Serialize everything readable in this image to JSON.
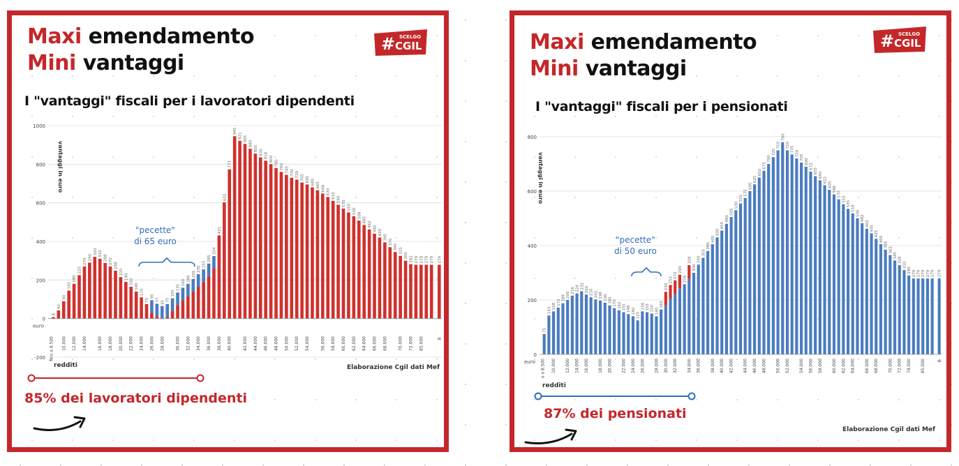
{
  "colors": {
    "accent_red": "#c4272a",
    "bar_red": "#d0312d",
    "bar_blue": "#4a7cc0",
    "annotation_blue": "#2f6eb8",
    "text_dark": "#111111"
  },
  "panels": [
    {
      "headline_1_red": "Maxi",
      "headline_1_rest": " emendamento",
      "headline_2_red": "Mini",
      "headline_2_rest": " vantaggi",
      "subtitle": "I \"vantaggi\" fiscali per i lavoratori dipendenti",
      "logo_text": "CGIL",
      "logo_small": "SCELGO",
      "annotation_line1": "\"pecette\"",
      "annotation_line2": "di 65 euro",
      "ylabel": "vantaggi in euro",
      "xname": "redditi",
      "footnote": "Elaborazione Cgil dati Mef",
      "stat": "85% dei lavoratori dipendenti"
    },
    {
      "headline_1_red": "Maxi",
      "headline_1_rest": " emendamento",
      "headline_2_red": "Mini",
      "headline_2_rest": " vantaggi",
      "subtitle": "I \"vantaggi\" fiscali per i pensionati",
      "logo_text": "CGIL",
      "logo_small": "SCELGO",
      "annotation_line1": "\"pecette\"",
      "annotation_line2": "di 50 euro",
      "ylabel": "vantaggi in euro",
      "xname": "redditi",
      "footnote": "Elaborazione Cgil dati Mef",
      "stat": "87% dei pensionati"
    }
  ],
  "chart_data": [
    {
      "type": "bar",
      "title": "I \"vantaggi\" fiscali per i lavoratori dipendenti",
      "ylabel": "vantaggi in euro",
      "xlabel": "redditi",
      "ylim": [
        -200,
        1000
      ],
      "yticks": [
        -200,
        0,
        200,
        400,
        600,
        800,
        1000
      ],
      "yunit_label": "euro",
      "grid": true,
      "first_category_label": "fino a 8.500",
      "last_category_label": "∞",
      "categories_labeled": [
        "10.000",
        "12.000",
        "14.000",
        "16.000",
        "18.000",
        "20.000",
        "22.000",
        "24.000",
        "26.000",
        "28.000",
        "30.000",
        "32.000",
        "34.000",
        "36.000",
        "38.000",
        "40.000",
        "42.000",
        "44.000",
        "46.000",
        "48.000",
        "50.000",
        "52.000",
        "54.000",
        "56.000",
        "58.000",
        "60.000",
        "62.000",
        "64.000",
        "66.000",
        "68.000",
        "70.000",
        "72.000",
        "85.000"
      ],
      "values": [
        8,
        42,
        90,
        145,
        180,
        225,
        270,
        290,
        320,
        310,
        288,
        270,
        248,
        215,
        190,
        165,
        140,
        110,
        75,
        30,
        12,
        0,
        10,
        40,
        70,
        95,
        115,
        140,
        165,
        190,
        220,
        259,
        431,
        602,
        773,
        945,
        921,
        905,
        880,
        855,
        835,
        818,
        800,
        780,
        760,
        745,
        730,
        720,
        705,
        695,
        680,
        665,
        648,
        630,
        610,
        590,
        570,
        550,
        530,
        508,
        485,
        462,
        440,
        420,
        395,
        370,
        345,
        325,
        300,
        282,
        279,
        279,
        279,
        279
      ],
      "patch_start": 19,
      "patch_end": 31,
      "patch_amount": 65
    },
    {
      "type": "bar",
      "title": "I \"vantaggi\" fiscali per i pensionati",
      "ylabel": "vantaggi in euro",
      "xlabel": "redditi",
      "ylim": [
        0,
        800
      ],
      "yticks": [
        0,
        200,
        400,
        600,
        800
      ],
      "yunit_label": "euro",
      "grid": true,
      "first_category_label": "fino a 8.500",
      "last_category_label": "∞",
      "categories_labeled": [
        "10.000",
        "12.000",
        "14.000",
        "16.000",
        "18.000",
        "20.000",
        "22.000",
        "24.000",
        "26.000",
        "28.000",
        "30.000",
        "32.000",
        "34.000",
        "36.000",
        "38.000",
        "40.000",
        "42.000",
        "44.000",
        "46.000",
        "48.000",
        "50.000",
        "52.000",
        "54.000",
        "56.000",
        "58.000",
        "60.000",
        "62.000",
        "64.000",
        "66.000",
        "68.000",
        "70.000",
        "72.000",
        "74.000",
        "85.000"
      ],
      "values": [
        75,
        143,
        158,
        172,
        188,
        200,
        216,
        224,
        232,
        220,
        210,
        202,
        198,
        190,
        180,
        170,
        162,
        155,
        148,
        140,
        125,
        158,
        155,
        150,
        140,
        165,
        180,
        205,
        222,
        243,
        258,
        278,
        300,
        330,
        355,
        380,
        405,
        430,
        455,
        480,
        505,
        530,
        555,
        575,
        600,
        625,
        650,
        675,
        700,
        725,
        750,
        780,
        750,
        735,
        720,
        705,
        690,
        672,
        655,
        640,
        622,
        605,
        588,
        570,
        552,
        535,
        518,
        500,
        482,
        462,
        445,
        425,
        405,
        385,
        365,
        345,
        328,
        310,
        290,
        279,
        279,
        279,
        279,
        279
      ],
      "patch_indices": [
        26,
        27,
        28,
        29,
        31
      ],
      "patch_amount": 50
    }
  ]
}
